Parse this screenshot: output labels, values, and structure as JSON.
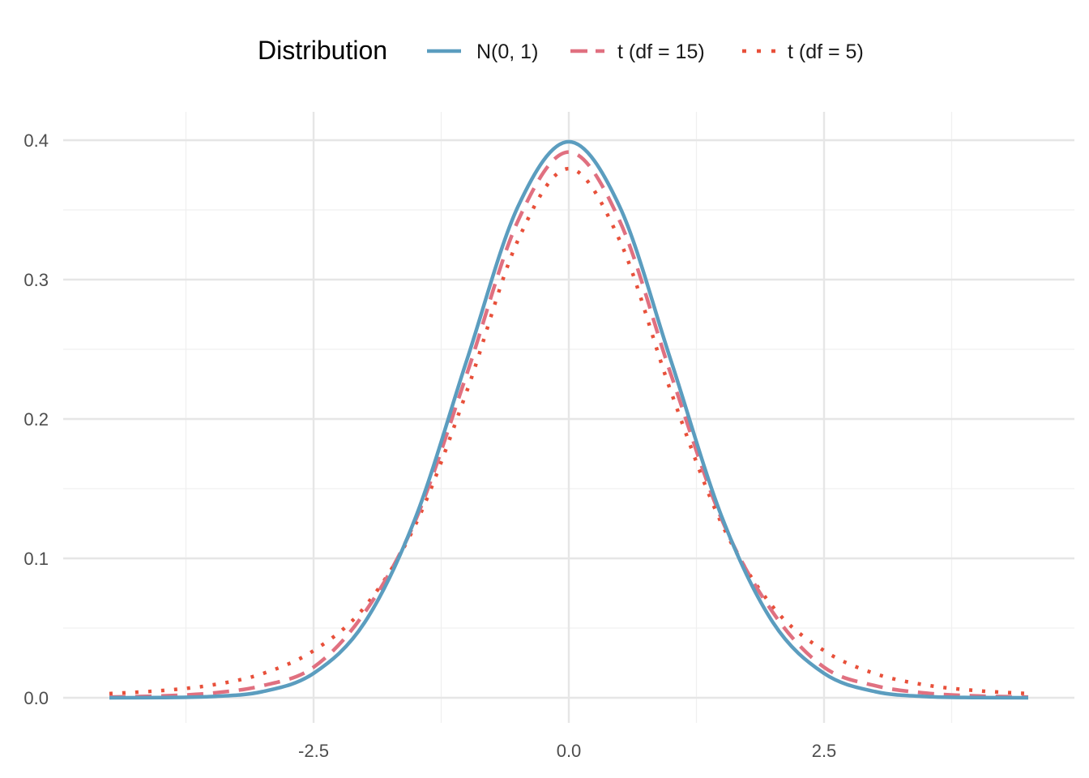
{
  "chart_data": {
    "type": "line",
    "title": "",
    "xlabel": "",
    "ylabel": "",
    "xlim": [
      -4.5,
      4.5
    ],
    "ylim": [
      0,
      0.4
    ],
    "grid": true,
    "legend": {
      "title": "Distribution",
      "placement": "top"
    },
    "x_ticks": [
      -2.5,
      0.0,
      2.5
    ],
    "x_tick_labels": [
      "-2.5",
      "0.0",
      "2.5"
    ],
    "y_ticks": [
      0.0,
      0.1,
      0.2,
      0.3,
      0.4
    ],
    "y_tick_labels": [
      "0.0",
      "0.1",
      "0.2",
      "0.3",
      "0.4"
    ],
    "x": [
      -4.5,
      -4.0,
      -3.5,
      -3.0,
      -2.5,
      -2.0,
      -1.5,
      -1.0,
      -0.5,
      0.0,
      0.5,
      1.0,
      1.5,
      2.0,
      2.5,
      3.0,
      3.5,
      4.0,
      4.5
    ],
    "series": [
      {
        "name": "N(0, 1)",
        "color": "#5b9dbf",
        "linestyle": "solid",
        "values": [
          1.6e-05,
          0.0001338,
          0.0008727,
          0.0044318,
          0.0175283,
          0.053991,
          0.1295176,
          0.2419707,
          0.3520653,
          0.3989423,
          0.3520653,
          0.2419707,
          0.1295176,
          0.053991,
          0.0175283,
          0.0044318,
          0.0008727,
          0.0001338,
          1.6e-05
        ]
      },
      {
        "name": "t (df = 15)",
        "color": "#e07080",
        "linestyle": "dashed",
        "values": [
          0.00052,
          0.00129,
          0.00333,
          0.00868,
          0.0219,
          0.0611,
          0.1276,
          0.232,
          0.3418,
          0.3915,
          0.3418,
          0.232,
          0.1276,
          0.0611,
          0.0219,
          0.00868,
          0.00333,
          0.00129,
          0.00052
        ]
      },
      {
        "name": "t (df = 5)",
        "color": "#e8503a",
        "linestyle": "dotted",
        "values": [
          0.003,
          0.0051,
          0.0091,
          0.0173,
          0.0338,
          0.0651,
          0.1245,
          0.2197,
          0.3279,
          0.3796,
          0.3279,
          0.2197,
          0.1245,
          0.0651,
          0.0338,
          0.0173,
          0.0091,
          0.0051,
          0.003
        ]
      }
    ]
  }
}
